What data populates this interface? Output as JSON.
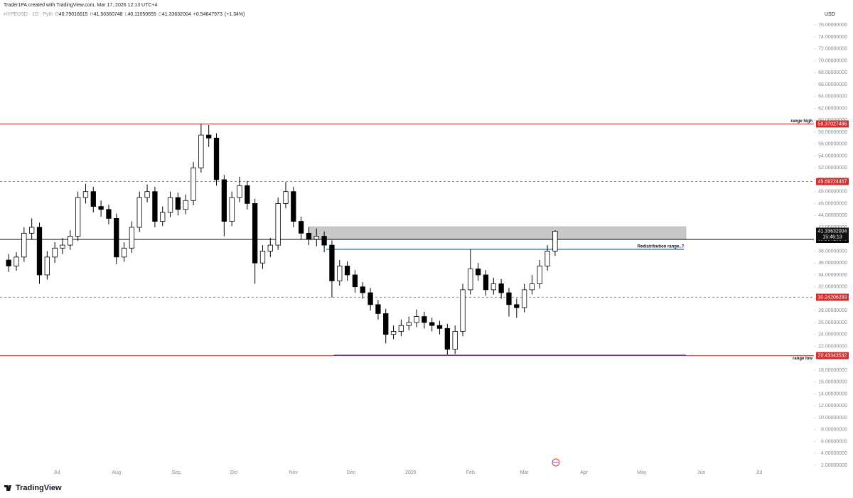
{
  "chart_data": {
    "type": "candlestick",
    "credit": "Trader1PA created with TradingView.com, Mar 17, 2026 12:13 UTC+4",
    "legend": {
      "symbol": "HYPEUSD · 1D · Pyth",
      "fields": [
        {
          "key": "O",
          "value": 40.79016615
        },
        {
          "key": "H",
          "value": 41.50360748
        },
        {
          "key": "L",
          "value": 40.11050655
        },
        {
          "key": "C",
          "value": 41.33632004
        }
      ],
      "change": {
        "value": 0.54647973,
        "label": "+0.54647973"
      },
      "change_pct": {
        "value": 1.34,
        "label": "(+1.34%)"
      }
    },
    "currency": "USD",
    "brand": "TradingView",
    "countdown": "15:46:13",
    "last": 41.33632004,
    "up_color": "#ffffff",
    "down_color": "#000000",
    "xlim": [
      -1.5,
      421.5
    ],
    "ylim": [
      1.4,
      80.2
    ],
    "xticks": [
      {
        "value": 28,
        "label": "Jul"
      },
      {
        "value": 59,
        "label": "Aug"
      },
      {
        "value": 90,
        "label": "Sep"
      },
      {
        "value": 120,
        "label": "Oct"
      },
      {
        "value": 151,
        "label": "Nov"
      },
      {
        "value": 181,
        "label": "Dec"
      },
      {
        "value": 212,
        "label": "2026"
      },
      {
        "value": 243,
        "label": "Feb"
      },
      {
        "value": 271,
        "label": "Mar"
      },
      {
        "value": 302,
        "label": "Apr"
      },
      {
        "value": 332,
        "label": "May"
      },
      {
        "value": 363,
        "label": "Jun"
      },
      {
        "value": 393,
        "label": "Jul"
      }
    ],
    "yticks": [
      {
        "value": 2,
        "label": "2.00000000"
      },
      {
        "value": 4,
        "label": "4.00000000"
      },
      {
        "value": 6,
        "label": "6.00000000"
      },
      {
        "value": 8,
        "label": "8.00000000"
      },
      {
        "value": 10,
        "label": "10.00000000"
      },
      {
        "value": 12,
        "label": "12.00000000"
      },
      {
        "value": 14,
        "label": "14.00000000"
      },
      {
        "value": 16,
        "label": "16.00000000"
      },
      {
        "value": 18,
        "label": "18.00000000"
      },
      {
        "value": 20,
        "label": "20.00000000"
      },
      {
        "value": 22,
        "label": "22.00000000"
      },
      {
        "value": 24,
        "label": "24.00000000"
      },
      {
        "value": 26,
        "label": "26.00000000"
      },
      {
        "value": 28,
        "label": "28.00000000"
      },
      {
        "value": 30,
        "label": "30.00000000"
      },
      {
        "value": 32,
        "label": "32.00000000"
      },
      {
        "value": 34,
        "label": "34.00000000"
      },
      {
        "value": 36,
        "label": "36.00000000"
      },
      {
        "value": 38,
        "label": "38.00000000"
      },
      {
        "value": 40,
        "label": "40.00000000"
      },
      {
        "value": 42,
        "label": "42.00000000"
      },
      {
        "value": 44,
        "label": "44.00000000"
      },
      {
        "value": 46,
        "label": "46.00000000"
      },
      {
        "value": 48,
        "label": "48.00000000"
      },
      {
        "value": 50,
        "label": "50.00000000"
      },
      {
        "value": 52,
        "label": "52.00000000"
      },
      {
        "value": 54,
        "label": "54.00000000"
      },
      {
        "value": 56,
        "label": "56.00000000"
      },
      {
        "value": 58,
        "label": "58.00000000"
      },
      {
        "value": 60,
        "label": "60.00000000"
      },
      {
        "value": 62,
        "label": "62.00000000"
      },
      {
        "value": 64,
        "label": "64.00000000"
      },
      {
        "value": 66,
        "label": "66.00000000"
      },
      {
        "value": 68,
        "label": "68.00000000"
      },
      {
        "value": 70,
        "label": "70.00000000"
      },
      {
        "value": 72,
        "label": "72.00000000"
      },
      {
        "value": 74,
        "label": "74.00000000"
      },
      {
        "value": 76,
        "label": "76.00000000"
      }
    ],
    "x": [
      3,
      7,
      11,
      15,
      19,
      23,
      27,
      31,
      35,
      39,
      43,
      47,
      51,
      55,
      59,
      63,
      67,
      71,
      75,
      79,
      83,
      87,
      91,
      95,
      99,
      103,
      107,
      111,
      115,
      119,
      123,
      127,
      131,
      135,
      139,
      143,
      147,
      151,
      155,
      159,
      163,
      167,
      171,
      175,
      179,
      183,
      187,
      191,
      195,
      199,
      203,
      207,
      211,
      215,
      219,
      223,
      227,
      231,
      235,
      239,
      243,
      247,
      251,
      255,
      259,
      263,
      267,
      271,
      275,
      279,
      283,
      287
    ],
    "open": [
      36.5,
      35.5,
      37,
      41,
      42,
      34,
      37,
      38.5,
      39,
      40.5,
      47,
      48,
      45.5,
      45,
      43.5,
      37,
      38.5,
      42,
      47,
      48,
      43,
      44.5,
      47,
      45,
      46.5,
      52,
      57.5,
      57,
      50,
      43,
      47,
      49,
      46,
      36,
      38,
      39,
      46,
      48,
      43,
      41,
      40,
      40.5,
      39,
      33,
      35.5,
      34,
      32,
      31,
      29,
      27.5,
      24,
      24.5,
      25.5,
      26,
      27,
      26,
      25.5,
      25,
      21.5,
      24.5,
      31.5,
      35,
      34,
      31.5,
      32.5,
      31,
      29,
      28.5,
      31.5,
      32.5,
      35.5,
      38
    ],
    "high": [
      37.5,
      37.8,
      42,
      43.5,
      42.8,
      38,
      39.5,
      40.2,
      41.5,
      48,
      49.3,
      48.8,
      46.5,
      45.8,
      44.3,
      39.5,
      43,
      48,
      49.2,
      48.8,
      45.5,
      48,
      47.8,
      47.5,
      53,
      59.4,
      59.2,
      57.8,
      50.8,
      48,
      50.5,
      49.8,
      46.8,
      39,
      40.2,
      47,
      49.6,
      48.8,
      43.8,
      42,
      41.8,
      41.3,
      39.8,
      36.5,
      36.3,
      34.8,
      32.8,
      31.8,
      29.8,
      28.3,
      25.5,
      26.5,
      27,
      28.2,
      27.8,
      26.8,
      26.3,
      25.8,
      25.5,
      32.5,
      38.3,
      36,
      34.8,
      33.5,
      33.3,
      31.8,
      30,
      32.5,
      34,
      36.5,
      39,
      41.50360748
    ],
    "low": [
      34.5,
      34.7,
      36.2,
      40,
      32.5,
      33.2,
      36,
      37.5,
      38.2,
      39.7,
      46,
      44.5,
      43.8,
      42.5,
      35.8,
      36.2,
      37.7,
      41.2,
      46.2,
      42,
      42.2,
      43.7,
      44,
      44.2,
      45.7,
      51.2,
      55.5,
      49,
      40.5,
      42.2,
      46.2,
      45,
      32.5,
      35,
      37,
      38.2,
      45.2,
      42,
      40,
      39,
      38.8,
      37.8,
      30.2,
      32.2,
      33,
      31,
      30,
      28,
      26.5,
      22.5,
      23.2,
      23.7,
      24.7,
      25.2,
      25,
      24.5,
      24,
      20.6,
      20.7,
      23.7,
      30.7,
      33,
      30.5,
      30.7,
      30,
      27,
      26.8,
      27.7,
      30.7,
      31.7,
      34.7,
      37.2
    ],
    "close": [
      35.5,
      37,
      41,
      42,
      34,
      37,
      38.5,
      39,
      40.5,
      47,
      48,
      45.5,
      45,
      43.5,
      37,
      38.5,
      42,
      47,
      48,
      43,
      44.5,
      47,
      45,
      46.5,
      52,
      57.5,
      57,
      50,
      43,
      47,
      49,
      46,
      36,
      38,
      39,
      46,
      48,
      43,
      41,
      40,
      40.5,
      39,
      33,
      35.5,
      34,
      32,
      31,
      29,
      27.5,
      24,
      24.5,
      25.5,
      26,
      27,
      26,
      25.5,
      25,
      21.5,
      24.5,
      31.5,
      35,
      34,
      31.5,
      32.5,
      31,
      29,
      28.5,
      31.5,
      32.5,
      35.5,
      38,
      41.33632004
    ],
    "levels": [
      {
        "value": 59.37027496,
        "color": "#d32f2f",
        "dashed": false,
        "label": "range high"
      },
      {
        "value": 49.69224467,
        "color": "#d32f2f",
        "dashed": true
      },
      {
        "value": 39.96715375,
        "color": "#000000",
        "dashed": false
      },
      {
        "value": 30.24206293,
        "color": "#d32f2f",
        "dashed": true
      },
      {
        "value": 20.43343532,
        "color": "#d32f2f",
        "dashed": false,
        "label": "range low"
      }
    ],
    "zones": [
      {
        "x": [
          159,
          355
        ],
        "y": [
          39.96715375,
          42.1
        ],
        "color": "#c8c8c8"
      }
    ],
    "segments": [
      {
        "x": [
          168,
          354
        ],
        "value": 38.29,
        "color": "#1e6bd6",
        "label": "Redistribution range..?"
      },
      {
        "x": [
          172,
          355
        ],
        "value": 20.5,
        "color": "#1e3fa8"
      }
    ]
  }
}
